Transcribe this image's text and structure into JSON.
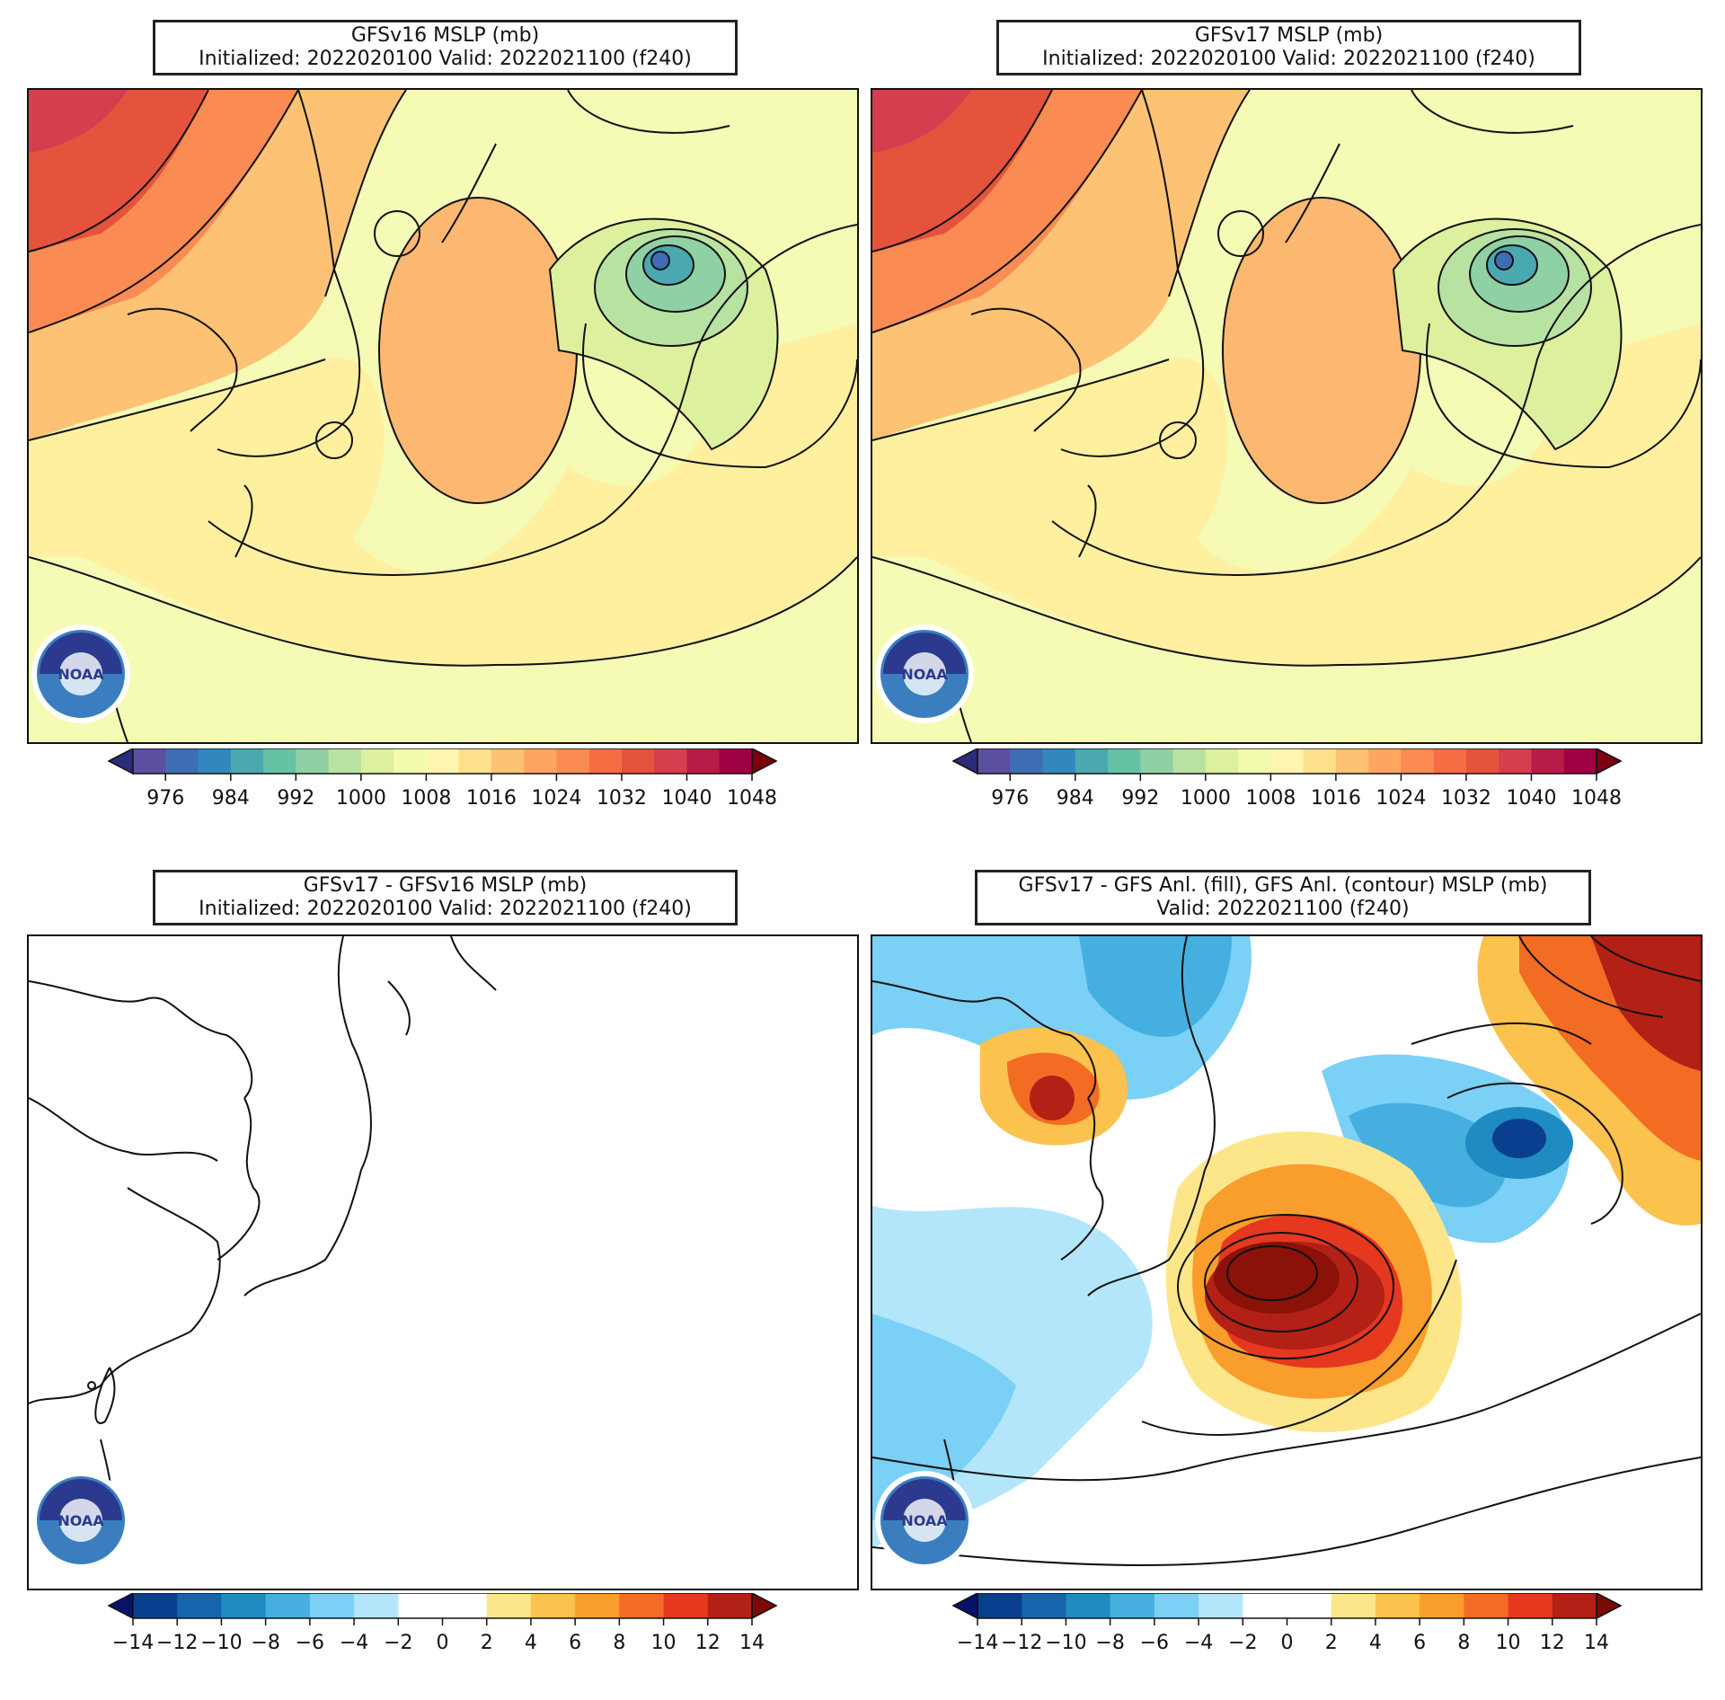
{
  "panels": [
    {
      "id": "gfsv16",
      "title_line1": "GFSv16 MSLP (mb)",
      "title_line2": "Initialized: 2022020100 Valid: 2022021100 (f240)",
      "colorbar": {
        "tick_labels": [
          "976",
          "984",
          "992",
          "1000",
          "1008",
          "1016",
          "1024",
          "1032",
          "1040",
          "1048"
        ],
        "colors": [
          "#5b4fa0",
          "#3f6db3",
          "#3288bd",
          "#4aa8b0",
          "#66c2a5",
          "#8fd1a4",
          "#b8e2a1",
          "#dcf09d",
          "#f2faac",
          "#fff4b0",
          "#fee08b",
          "#fdc273",
          "#fda660",
          "#f98b53",
          "#f46d43",
          "#e5533c",
          "#d53e4f",
          "#b71c49",
          "#9e0142"
        ],
        "extend_low": "#2c2a7a",
        "extend_high": "#7a0010"
      }
    },
    {
      "id": "gfsv17",
      "title_line1": "GFSv17 MSLP (mb)",
      "title_line2": "Initialized: 2022020100 Valid: 2022021100 (f240)",
      "colorbar": {
        "tick_labels": [
          "976",
          "984",
          "992",
          "1000",
          "1008",
          "1016",
          "1024",
          "1032",
          "1040",
          "1048"
        ],
        "colors": [
          "#5b4fa0",
          "#3f6db3",
          "#3288bd",
          "#4aa8b0",
          "#66c2a5",
          "#8fd1a4",
          "#b8e2a1",
          "#dcf09d",
          "#f2faac",
          "#fff4b0",
          "#fee08b",
          "#fdc273",
          "#fda660",
          "#f98b53",
          "#f46d43",
          "#e5533c",
          "#d53e4f",
          "#b71c49",
          "#9e0142"
        ],
        "extend_low": "#2c2a7a",
        "extend_high": "#7a0010"
      }
    },
    {
      "id": "diff",
      "title_line1": "GFSv17 - GFSv16 MSLP (mb)",
      "title_line2": "Initialized: 2022020100 Valid: 2022021100 (f240)",
      "colorbar": {
        "tick_labels": [
          "−14",
          "−12",
          "−10",
          "−8",
          "−6",
          "−4",
          "−2",
          "0",
          "2",
          "4",
          "6",
          "8",
          "10",
          "12",
          "14"
        ],
        "colors": [
          "#0a3f8f",
          "#1565ad",
          "#1e8bc3",
          "#45b0e0",
          "#7bd0f5",
          "#b3e6fb",
          "#ffffff",
          "#ffffff",
          "#fde68a",
          "#fbc24d",
          "#f99d2c",
          "#f36c24",
          "#e5381f",
          "#b32015"
        ],
        "extend_low": "#07136b",
        "extend_high": "#7a0a05"
      }
    },
    {
      "id": "anl",
      "title_line1": "GFSv17 - GFS Anl. (fill), GFS Anl. (contour) MSLP (mb)",
      "title_line2": "Valid: 2022021100 (f240)",
      "colorbar": {
        "tick_labels": [
          "−14",
          "−12",
          "−10",
          "−8",
          "−6",
          "−4",
          "−2",
          "0",
          "2",
          "4",
          "6",
          "8",
          "10",
          "12",
          "14"
        ],
        "colors": [
          "#0a3f8f",
          "#1565ad",
          "#1e8bc3",
          "#45b0e0",
          "#7bd0f5",
          "#b3e6fb",
          "#ffffff",
          "#ffffff",
          "#fde68a",
          "#fbc24d",
          "#f99d2c",
          "#f36c24",
          "#e5381f",
          "#b32015"
        ],
        "extend_low": "#07136b",
        "extend_high": "#7a0a05"
      }
    }
  ],
  "logo": {
    "icon": "noaa-logo-icon",
    "text": "NOAA"
  }
}
